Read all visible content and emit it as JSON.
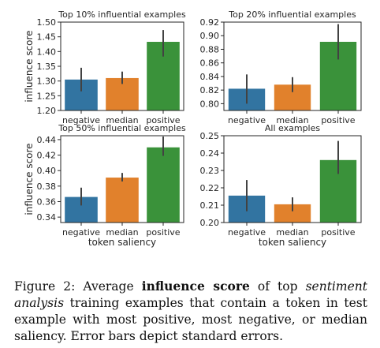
{
  "chart_data": [
    {
      "type": "bar",
      "title": "Top 10% influential examples",
      "ylabel": "influence score",
      "xlabel": "",
      "categories": [
        "negative",
        "median",
        "positive"
      ],
      "values": [
        1.305,
        1.31,
        1.433
      ],
      "error_low": [
        1.265,
        1.29,
        1.383
      ],
      "error_high": [
        1.345,
        1.332,
        1.473
      ],
      "ylim": [
        1.2,
        1.5
      ],
      "yticks": [
        "1.20",
        "1.25",
        "1.30",
        "1.35",
        "1.40",
        "1.45",
        "1.50"
      ],
      "colors": [
        "#3274a1",
        "#e1812c",
        "#3a923a"
      ],
      "grid": false
    },
    {
      "type": "bar",
      "title": "Top 20% influential examples",
      "ylabel": "",
      "xlabel": "",
      "categories": [
        "negative",
        "median",
        "positive"
      ],
      "values": [
        0.822,
        0.828,
        0.891
      ],
      "error_low": [
        0.8,
        0.817,
        0.865
      ],
      "error_high": [
        0.843,
        0.839,
        0.917
      ],
      "ylim": [
        0.79,
        0.92
      ],
      "yticks": [
        "0.80",
        "0.82",
        "0.84",
        "0.86",
        "0.88",
        "0.90",
        "0.92"
      ],
      "colors": [
        "#3274a1",
        "#e1812c",
        "#3a923a"
      ],
      "grid": false
    },
    {
      "type": "bar",
      "title": "Top 50% influential examples",
      "ylabel": "influence score",
      "xlabel": "token saliency",
      "categories": [
        "negative",
        "median",
        "positive"
      ],
      "values": [
        0.366,
        0.391,
        0.43
      ],
      "error_low": [
        0.355,
        0.386,
        0.419
      ],
      "error_high": [
        0.378,
        0.397,
        0.444
      ],
      "ylim": [
        0.333,
        0.445
      ],
      "yticks": [
        "0.34",
        "0.36",
        "0.38",
        "0.40",
        "0.42",
        "0.44"
      ],
      "colors": [
        "#3274a1",
        "#e1812c",
        "#3a923a"
      ],
      "grid": false
    },
    {
      "type": "bar",
      "title": "All examples",
      "ylabel": "",
      "xlabel": "token saliency",
      "categories": [
        "negative",
        "median",
        "positive"
      ],
      "values": [
        0.2155,
        0.2105,
        0.236
      ],
      "error_low": [
        0.2065,
        0.2065,
        0.228
      ],
      "error_high": [
        0.2245,
        0.2145,
        0.247
      ],
      "ylim": [
        0.2,
        0.25
      ],
      "yticks": [
        "0.20",
        "0.21",
        "0.22",
        "0.23",
        "0.24",
        "0.25"
      ],
      "colors": [
        "#3274a1",
        "#e1812c",
        "#3a923a"
      ],
      "grid": false
    }
  ],
  "caption": {
    "lead": "Figure 2:  Average ",
    "bold": "influence score",
    "mid": " of top ",
    "italic": "sentiment analysis",
    "tail": " training examples that contain a token in test example with most positive, most negative, or median saliency. Error bars depict standard errors."
  }
}
